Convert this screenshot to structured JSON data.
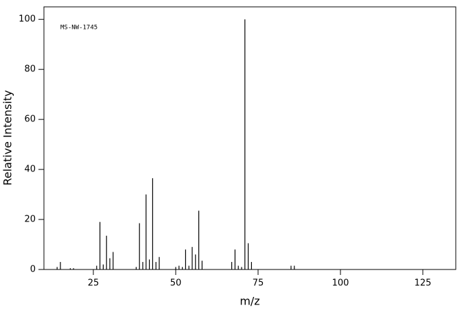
{
  "chart_data": {
    "type": "stem",
    "annotation": "MS-NW-1745",
    "xlabel": "m/z",
    "ylabel": "Relative Intensity",
    "x": [
      14,
      15,
      18,
      19,
      26,
      27,
      28,
      29,
      30,
      31,
      38,
      39,
      40,
      41,
      42,
      43,
      44,
      45,
      50,
      51,
      52,
      53,
      54,
      55,
      56,
      57,
      58,
      67,
      68,
      69,
      70,
      71,
      72,
      73,
      85,
      86
    ],
    "values": [
      1,
      3,
      0.5,
      0.5,
      1.5,
      19,
      2,
      13.5,
      4.5,
      7,
      1,
      18.5,
      3,
      30,
      4,
      36.5,
      3,
      5,
      1,
      1.5,
      1,
      8,
      1.5,
      9,
      6,
      23.5,
      3.5,
      3,
      8,
      1.5,
      1,
      100,
      10.5,
      3,
      1.5,
      1.5
    ],
    "color": "#000000",
    "xlim": [
      10,
      135
    ],
    "xticks": [
      25,
      50,
      75,
      100,
      125
    ],
    "ylim": [
      0,
      105
    ],
    "yticks": [
      0,
      20,
      40,
      60,
      80,
      100
    ]
  }
}
